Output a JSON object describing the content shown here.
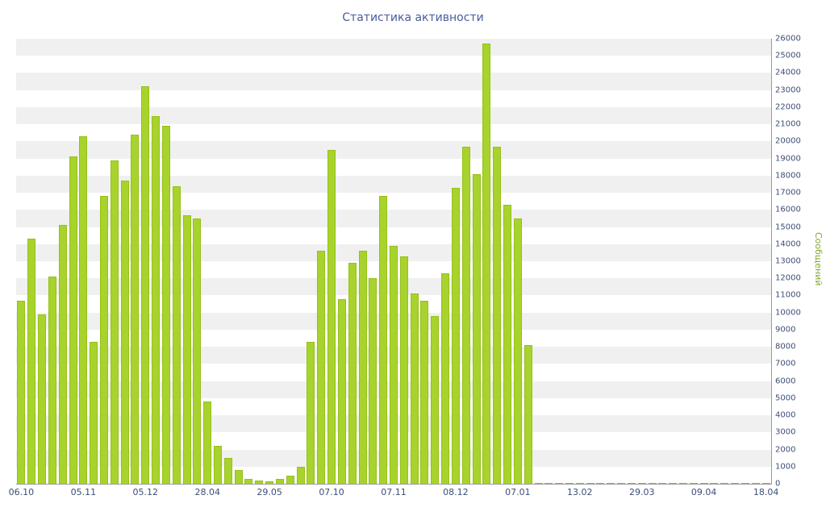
{
  "title": "Статистика активности",
  "chart_data": {
    "type": "bar",
    "title": "Статистика активности",
    "xlabel": "",
    "ylabel": "Сообщений",
    "ylim": [
      0,
      26000
    ],
    "ytick_step": 1000,
    "y_axis_side": "right",
    "grid": "horizontal-striped-bands",
    "legend": "none",
    "x_tick_labels": [
      "06.10",
      "05.11",
      "05.12",
      "28.04",
      "29.05",
      "07.10",
      "07.11",
      "08.12",
      "07.01",
      "13.02",
      "29.03",
      "09.04",
      "18.04"
    ],
    "x_tick_every": 6,
    "n_bars": 73,
    "values": [
      10700,
      14300,
      9900,
      12100,
      15100,
      19100,
      20300,
      8300,
      16800,
      18900,
      17700,
      20400,
      23200,
      21500,
      20900,
      17400,
      15700,
      15500,
      4800,
      2200,
      1500,
      800,
      300,
      200,
      150,
      300,
      450,
      1000,
      8300,
      13600,
      19500,
      10800,
      12900,
      13600,
      12000,
      16800,
      13900,
      13300,
      11100,
      10700,
      9800,
      12300,
      17300,
      19700,
      18100,
      25700,
      19700,
      16300,
      15500,
      8100,
      25,
      25,
      25,
      25,
      25,
      25,
      25,
      25,
      25,
      25,
      25,
      25,
      25,
      25,
      25,
      25,
      25,
      25,
      25,
      25,
      25,
      25,
      25
    ],
    "colors": {
      "bar": "#a7d32c",
      "bar_border": "#96c117",
      "stripe": "#f0f0f0",
      "axis": "#9a9a9a",
      "tick_label": "#3c4e74",
      "title": "#4a5c9b",
      "ylabel": "#84a62c",
      "background": "#ffffff"
    }
  }
}
